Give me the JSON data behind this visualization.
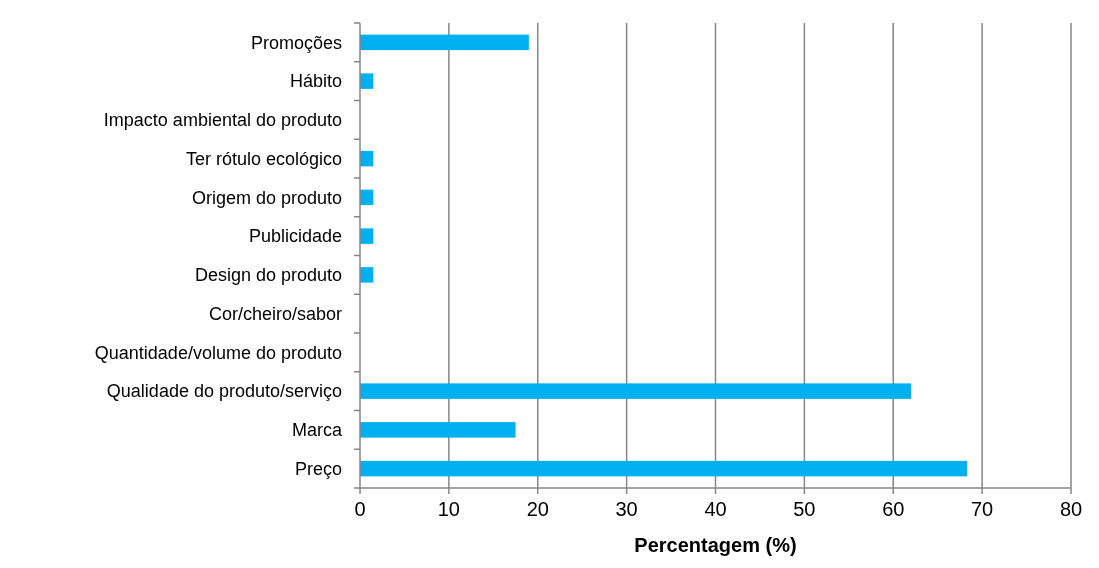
{
  "chart_data": {
    "type": "bar",
    "orientation": "horizontal",
    "categories": [
      "Promoções",
      "Hábito",
      "Impacto ambiental do produto",
      "Ter rótulo ecológico",
      "Origem do produto",
      "Publicidade",
      "Design do produto",
      "Cor/cheiro/sabor",
      "Quantidade/volume do produto",
      "Qualidade do produto/serviço",
      "Marca",
      "Preço"
    ],
    "values": [
      19,
      1.5,
      0,
      1.5,
      1.5,
      1.5,
      1.5,
      0,
      0,
      62,
      17.5,
      68.3
    ],
    "color": "#00b0f0",
    "xlim": [
      0,
      80
    ],
    "xticks": [
      0,
      10,
      20,
      30,
      40,
      50,
      60,
      70,
      80
    ],
    "grid": "x",
    "xlabel": "Percentagem (%)"
  }
}
